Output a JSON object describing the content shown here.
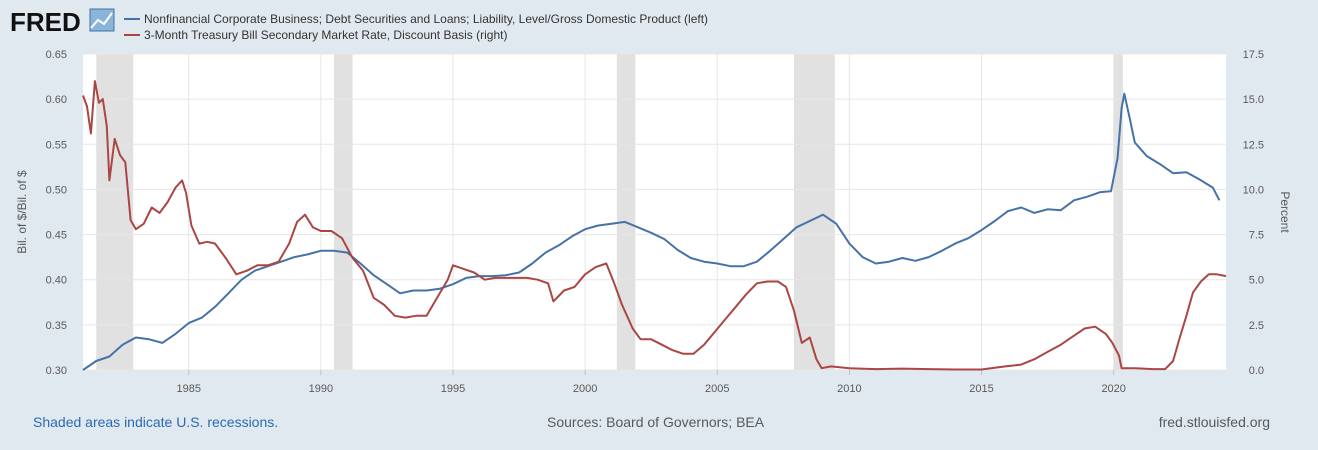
{
  "logo": {
    "text": "FRED"
  },
  "footer": {
    "recession_note": "Shaded areas indicate U.S. recessions.",
    "sources": "Sources: Board of Governors; BEA",
    "site": "fred.stlouisfed.org"
  },
  "colors": {
    "background": "#e1e9f0",
    "plot_bg": "#ffffff",
    "series_left": "#4572a7",
    "series_right": "#aa4643",
    "recession": "#e1e1e1"
  },
  "chart_data": {
    "type": "line",
    "title": "",
    "xlabel": "",
    "ylabel_left": "Bil. of $/Bil. of $",
    "ylabel_right": "Percent",
    "xlim": [
      1981.0,
      2024.25
    ],
    "ylim_left": [
      0.3,
      0.65
    ],
    "ylim_right": [
      0,
      17.5
    ],
    "x_ticks": [
      1985,
      1990,
      1995,
      2000,
      2005,
      2010,
      2015,
      2020
    ],
    "y_ticks_left": [
      "0.30",
      "0.35",
      "0.40",
      "0.45",
      "0.50",
      "0.55",
      "0.60",
      "0.65"
    ],
    "y_ticks_right": [
      "0.0",
      "2.5",
      "5.0",
      "7.5",
      "10.0",
      "12.5",
      "15.0",
      "17.5"
    ],
    "grid": true,
    "legend_position": "top-left",
    "recessions": [
      [
        1981.5,
        1982.9
      ],
      [
        1990.5,
        1991.2
      ],
      [
        2001.2,
        2001.9
      ],
      [
        2007.9,
        2009.45
      ],
      [
        2020.0,
        2020.35
      ]
    ],
    "series": [
      {
        "name": "Nonfinancial Corporate Business; Debt Securities and Loans; Liability, Level/Gross Domestic Product (left)",
        "axis": "left",
        "points": [
          [
            1981.0,
            0.3
          ],
          [
            1981.5,
            0.31
          ],
          [
            1982.0,
            0.315
          ],
          [
            1982.5,
            0.328
          ],
          [
            1983.0,
            0.336
          ],
          [
            1983.5,
            0.334
          ],
          [
            1984.0,
            0.33
          ],
          [
            1984.5,
            0.34
          ],
          [
            1985.0,
            0.352
          ],
          [
            1985.5,
            0.358
          ],
          [
            1986.0,
            0.37
          ],
          [
            1986.5,
            0.385
          ],
          [
            1987.0,
            0.4
          ],
          [
            1987.5,
            0.41
          ],
          [
            1988.0,
            0.415
          ],
          [
            1988.5,
            0.42
          ],
          [
            1989.0,
            0.425
          ],
          [
            1989.5,
            0.428
          ],
          [
            1990.0,
            0.432
          ],
          [
            1990.5,
            0.432
          ],
          [
            1991.0,
            0.43
          ],
          [
            1991.5,
            0.418
          ],
          [
            1992.0,
            0.405
          ],
          [
            1992.5,
            0.395
          ],
          [
            1993.0,
            0.385
          ],
          [
            1993.5,
            0.388
          ],
          [
            1994.0,
            0.388
          ],
          [
            1994.5,
            0.39
          ],
          [
            1995.0,
            0.395
          ],
          [
            1995.5,
            0.402
          ],
          [
            1996.0,
            0.404
          ],
          [
            1996.5,
            0.404
          ],
          [
            1997.0,
            0.405
          ],
          [
            1997.5,
            0.408
          ],
          [
            1998.0,
            0.418
          ],
          [
            1998.5,
            0.43
          ],
          [
            1999.0,
            0.438
          ],
          [
            1999.5,
            0.448
          ],
          [
            2000.0,
            0.456
          ],
          [
            2000.5,
            0.46
          ],
          [
            2001.0,
            0.462
          ],
          [
            2001.5,
            0.464
          ],
          [
            2002.0,
            0.458
          ],
          [
            2002.5,
            0.452
          ],
          [
            2003.0,
            0.445
          ],
          [
            2003.5,
            0.433
          ],
          [
            2004.0,
            0.424
          ],
          [
            2004.5,
            0.42
          ],
          [
            2005.0,
            0.418
          ],
          [
            2005.5,
            0.415
          ],
          [
            2006.0,
            0.415
          ],
          [
            2006.5,
            0.42
          ],
          [
            2007.0,
            0.432
          ],
          [
            2007.5,
            0.445
          ],
          [
            2008.0,
            0.458
          ],
          [
            2008.5,
            0.465
          ],
          [
            2009.0,
            0.472
          ],
          [
            2009.5,
            0.462
          ],
          [
            2010.0,
            0.44
          ],
          [
            2010.5,
            0.425
          ],
          [
            2011.0,
            0.418
          ],
          [
            2011.5,
            0.42
          ],
          [
            2012.0,
            0.424
          ],
          [
            2012.5,
            0.421
          ],
          [
            2013.0,
            0.425
          ],
          [
            2013.5,
            0.432
          ],
          [
            2014.0,
            0.44
          ],
          [
            2014.5,
            0.446
          ],
          [
            2015.0,
            0.455
          ],
          [
            2015.5,
            0.465
          ],
          [
            2016.0,
            0.476
          ],
          [
            2016.5,
            0.48
          ],
          [
            2017.0,
            0.474
          ],
          [
            2017.5,
            0.478
          ],
          [
            2018.0,
            0.477
          ],
          [
            2018.5,
            0.488
          ],
          [
            2019.0,
            0.492
          ],
          [
            2019.5,
            0.497
          ],
          [
            2019.9,
            0.498
          ],
          [
            2020.15,
            0.535
          ],
          [
            2020.3,
            0.59
          ],
          [
            2020.4,
            0.606
          ],
          [
            2020.6,
            0.58
          ],
          [
            2020.8,
            0.552
          ],
          [
            2021.25,
            0.537
          ],
          [
            2021.75,
            0.528
          ],
          [
            2022.25,
            0.518
          ],
          [
            2022.75,
            0.519
          ],
          [
            2023.25,
            0.511
          ],
          [
            2023.75,
            0.502
          ],
          [
            2024.0,
            0.488
          ]
        ]
      },
      {
        "name": "3-Month Treasury Bill Secondary Market Rate, Discount Basis (right)",
        "axis": "right",
        "points": [
          [
            1981.0,
            15.2
          ],
          [
            1981.15,
            14.6
          ],
          [
            1981.3,
            13.1
          ],
          [
            1981.45,
            16.0
          ],
          [
            1981.6,
            14.8
          ],
          [
            1981.75,
            15.0
          ],
          [
            1981.9,
            13.5
          ],
          [
            1982.0,
            10.5
          ],
          [
            1982.2,
            12.8
          ],
          [
            1982.4,
            11.9
          ],
          [
            1982.6,
            11.5
          ],
          [
            1982.8,
            8.3
          ],
          [
            1983.0,
            7.8
          ],
          [
            1983.3,
            8.1
          ],
          [
            1983.6,
            9.0
          ],
          [
            1983.9,
            8.7
          ],
          [
            1984.2,
            9.3
          ],
          [
            1984.5,
            10.1
          ],
          [
            1984.75,
            10.5
          ],
          [
            1984.9,
            9.8
          ],
          [
            1985.1,
            8.0
          ],
          [
            1985.4,
            7.0
          ],
          [
            1985.7,
            7.1
          ],
          [
            1986.0,
            7.0
          ],
          [
            1986.4,
            6.2
          ],
          [
            1986.8,
            5.3
          ],
          [
            1987.2,
            5.5
          ],
          [
            1987.6,
            5.8
          ],
          [
            1988.0,
            5.8
          ],
          [
            1988.4,
            6.0
          ],
          [
            1988.8,
            7.0
          ],
          [
            1989.1,
            8.2
          ],
          [
            1989.4,
            8.6
          ],
          [
            1989.7,
            7.9
          ],
          [
            1990.0,
            7.7
          ],
          [
            1990.4,
            7.7
          ],
          [
            1990.8,
            7.3
          ],
          [
            1991.2,
            6.2
          ],
          [
            1991.6,
            5.5
          ],
          [
            1992.0,
            4.0
          ],
          [
            1992.4,
            3.6
          ],
          [
            1992.8,
            3.0
          ],
          [
            1993.2,
            2.9
          ],
          [
            1993.6,
            3.0
          ],
          [
            1994.0,
            3.0
          ],
          [
            1994.4,
            4.0
          ],
          [
            1994.8,
            5.0
          ],
          [
            1995.0,
            5.8
          ],
          [
            1995.4,
            5.6
          ],
          [
            1995.8,
            5.4
          ],
          [
            1996.2,
            5.0
          ],
          [
            1996.6,
            5.1
          ],
          [
            1997.0,
            5.1
          ],
          [
            1997.4,
            5.1
          ],
          [
            1997.8,
            5.1
          ],
          [
            1998.2,
            5.0
          ],
          [
            1998.6,
            4.8
          ],
          [
            1998.8,
            3.8
          ],
          [
            1999.2,
            4.4
          ],
          [
            1999.6,
            4.6
          ],
          [
            2000.0,
            5.3
          ],
          [
            2000.4,
            5.7
          ],
          [
            2000.8,
            5.9
          ],
          [
            2001.1,
            4.8
          ],
          [
            2001.4,
            3.6
          ],
          [
            2001.8,
            2.3
          ],
          [
            2002.1,
            1.7
          ],
          [
            2002.5,
            1.7
          ],
          [
            2002.9,
            1.4
          ],
          [
            2003.3,
            1.1
          ],
          [
            2003.7,
            0.9
          ],
          [
            2004.1,
            0.9
          ],
          [
            2004.5,
            1.4
          ],
          [
            2004.9,
            2.1
          ],
          [
            2005.3,
            2.8
          ],
          [
            2005.7,
            3.5
          ],
          [
            2006.1,
            4.2
          ],
          [
            2006.5,
            4.8
          ],
          [
            2006.9,
            4.9
          ],
          [
            2007.3,
            4.9
          ],
          [
            2007.6,
            4.6
          ],
          [
            2007.9,
            3.3
          ],
          [
            2008.2,
            1.5
          ],
          [
            2008.5,
            1.8
          ],
          [
            2008.75,
            0.6
          ],
          [
            2008.95,
            0.1
          ],
          [
            2009.3,
            0.2
          ],
          [
            2010.0,
            0.1
          ],
          [
            2011.0,
            0.05
          ],
          [
            2012.0,
            0.08
          ],
          [
            2013.0,
            0.05
          ],
          [
            2014.0,
            0.03
          ],
          [
            2015.0,
            0.03
          ],
          [
            2015.9,
            0.2
          ],
          [
            2016.5,
            0.3
          ],
          [
            2017.0,
            0.6
          ],
          [
            2017.5,
            1.0
          ],
          [
            2018.0,
            1.4
          ],
          [
            2018.5,
            1.9
          ],
          [
            2018.9,
            2.3
          ],
          [
            2019.3,
            2.4
          ],
          [
            2019.7,
            2.0
          ],
          [
            2019.95,
            1.5
          ],
          [
            2020.2,
            0.8
          ],
          [
            2020.3,
            0.1
          ],
          [
            2020.8,
            0.1
          ],
          [
            2021.5,
            0.05
          ],
          [
            2021.95,
            0.05
          ],
          [
            2022.25,
            0.5
          ],
          [
            2022.5,
            1.8
          ],
          [
            2022.75,
            3.0
          ],
          [
            2023.0,
            4.3
          ],
          [
            2023.3,
            4.9
          ],
          [
            2023.6,
            5.3
          ],
          [
            2023.9,
            5.3
          ],
          [
            2024.25,
            5.2
          ]
        ]
      }
    ]
  }
}
